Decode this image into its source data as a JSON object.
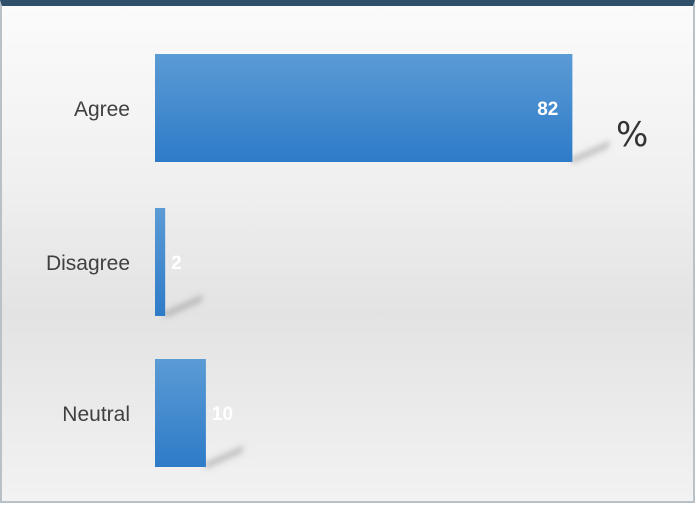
{
  "chart_data": {
    "type": "bar",
    "orientation": "horizontal",
    "categories": [
      "Agree",
      "Disagree",
      "Neutral"
    ],
    "values": [
      82,
      2,
      10
    ],
    "unit_label": "%",
    "xlim": [
      0,
      100
    ],
    "grid": false,
    "legend": "none",
    "data_labels": true,
    "colors": {
      "bar_top": "#5b9bd5",
      "bar_bottom": "#2e7bc8",
      "frame_border": "#2f4f6a",
      "label_text": "#404040"
    }
  }
}
